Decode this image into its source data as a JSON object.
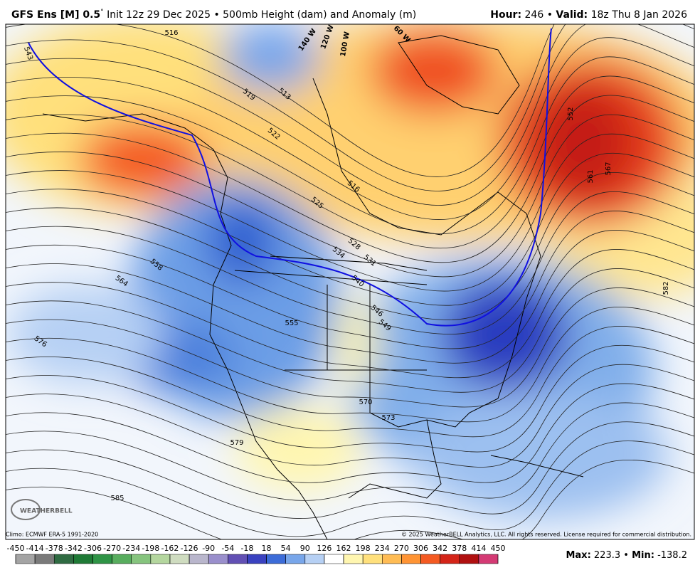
{
  "header": {
    "model": "GFS Ens [M] 0.5",
    "degree": "°",
    "description": "Init 12z 29 Dec 2025 • 500mb Height (dam) and Anomaly (m)",
    "hour_label": "Hour:",
    "hour": "246",
    "sep": "•",
    "valid_label": "Valid:",
    "valid": "18z Thu 8 Jan 2026"
  },
  "map": {
    "contour_labels": [
      "516",
      "543",
      "519",
      "513",
      "522",
      "516",
      "525",
      "528",
      "531",
      "534",
      "540",
      "546",
      "549",
      "552",
      "555",
      "558",
      "561",
      "564",
      "567",
      "570",
      "573",
      "576",
      "579",
      "582",
      "585"
    ],
    "longitude_labels": [
      "140 W",
      "120 W",
      "100 W",
      "60 W"
    ],
    "logo": "WEATHERBELL"
  },
  "footer": {
    "climo": "Climo: ECMWF ERA-5 1991-2020",
    "copyright": "© 2025 WeatherBELL Analytics, LLC. All rights reserved. License required for commercial distribution.",
    "max_label": "Max:",
    "max": "223.3",
    "sep": "•",
    "min_label": "Min:",
    "min": "-138.2"
  },
  "colorbar": {
    "ticks": [
      -450,
      -414,
      -378,
      -342,
      -306,
      -270,
      -234,
      -198,
      -162,
      -126,
      -90,
      -54,
      -18,
      18,
      54,
      90,
      126,
      162,
      198,
      234,
      270,
      306,
      342,
      378,
      414,
      450
    ],
    "colors": [
      "#a4a4a4",
      "#7a7a7a",
      "#2f6b42",
      "#1f7a36",
      "#2f9446",
      "#58ad5e",
      "#86c47e",
      "#b4d69e",
      "#cfdcc0",
      "#b9b6cc",
      "#9a8fcc",
      "#6250b4",
      "#3a42c0",
      "#3c6cd8",
      "#78a6ea",
      "#b6d0f4",
      "#ffffff",
      "#fff6b0",
      "#ffe07c",
      "#ffbc54",
      "#ff9434",
      "#f45a22",
      "#d42418",
      "#b01010",
      "#d43a74"
    ]
  }
}
